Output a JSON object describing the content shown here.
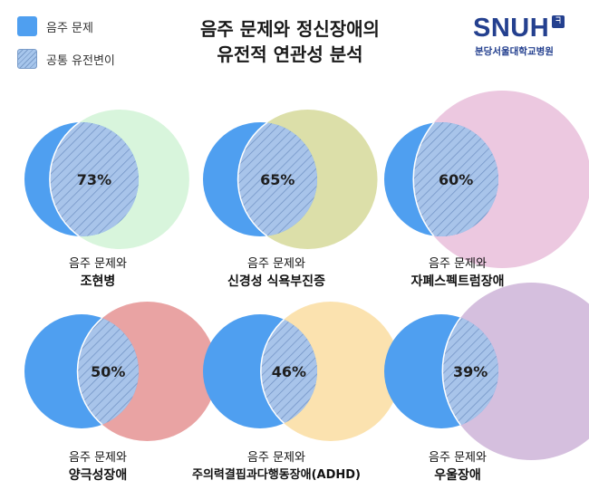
{
  "title": {
    "line1": "음주 문제와 정신장애의",
    "line2": "유전적 연관성 분석"
  },
  "legend": [
    {
      "label": "음주 문제",
      "color": "#4f9ff0",
      "pattern": "solid"
    },
    {
      "label": "공통 유전변이",
      "color": "#a7c6ec",
      "pattern": "hatched"
    }
  ],
  "logo": {
    "text": "SNUH",
    "subtitle": "분당서울대학교병원",
    "color": "#24408f"
  },
  "chart_data": {
    "type": "venn",
    "primary_set": "음주 문제",
    "primary_color": "#4f9ff0",
    "overlap_label": "공통 유전변이",
    "overlap_color": "#a7c6ec",
    "panels": [
      {
        "caption_line1": "음주 문제와",
        "caption_line2": "조현병",
        "overlap_percent": 73,
        "overlap_label": "73%",
        "disorder_color": "#d8f5dc",
        "disorder_size": "medium"
      },
      {
        "caption_line1": "음주 문제와",
        "caption_line2": "신경성 식욕부진증",
        "overlap_percent": 65,
        "overlap_label": "65%",
        "disorder_color": "#dcdfa9",
        "disorder_size": "medium"
      },
      {
        "caption_line1": "음주 문제와",
        "caption_line2": "자폐스펙트럼장애",
        "overlap_percent": 60,
        "overlap_label": "60%",
        "disorder_color": "#ecc8e0",
        "disorder_size": "large"
      },
      {
        "caption_line1": "음주 문제와",
        "caption_line2": "양극성장애",
        "overlap_percent": 50,
        "overlap_label": "50%",
        "disorder_color": "#e9a3a3",
        "disorder_size": "medium"
      },
      {
        "caption_line1": "음주 문제와",
        "caption_line2": "주의력결핍과다행동장애(ADHD)",
        "overlap_percent": 46,
        "overlap_label": "46%",
        "disorder_color": "#fbe2af",
        "disorder_size": "medium"
      },
      {
        "caption_line1": "음주 문제와",
        "caption_line2": "우울장애",
        "overlap_percent": 39,
        "overlap_label": "39%",
        "disorder_color": "#d5bfde",
        "disorder_size": "large"
      }
    ]
  }
}
